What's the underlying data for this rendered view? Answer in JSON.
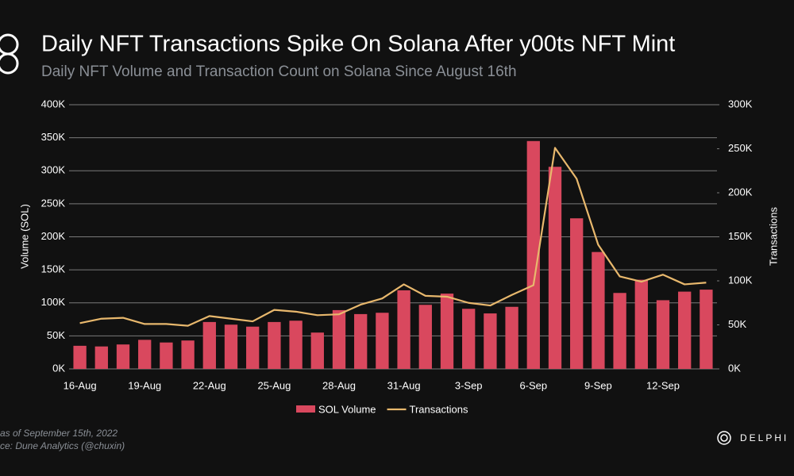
{
  "chart_data": {
    "type": "bar_line",
    "title": "Daily NFT Transactions Spike On Solana After y00ts NFT Mint",
    "subtitle": "Daily NFT Volume and Transaction Count on Solana Since August 16th",
    "y_label": "Volume (SOL)",
    "y2_label": "Transactions",
    "categories": [
      "16-Aug",
      null,
      null,
      "19-Aug",
      null,
      null,
      "22-Aug",
      null,
      null,
      "25-Aug",
      null,
      null,
      "28-Aug",
      null,
      null,
      "31-Aug",
      null,
      null,
      "3-Sep",
      null,
      null,
      "6-Sep",
      null,
      null,
      "9-Sep",
      null,
      null,
      "12-Sep",
      null,
      null
    ],
    "series": [
      {
        "name": "SOL Volume",
        "type": "bar",
        "color": "#d9485e",
        "values": [
          35000,
          34000,
          37000,
          44000,
          40000,
          43000,
          71000,
          67000,
          64000,
          71000,
          73000,
          55000,
          89000,
          83000,
          85000,
          119000,
          97000,
          114000,
          91000,
          84000,
          94000,
          345000,
          306000,
          228000,
          177000,
          115000,
          135000,
          104000,
          117000,
          120000
        ]
      },
      {
        "name": "Transactions",
        "type": "line",
        "axis": "y2",
        "color": "#e8b86d",
        "values": [
          52000,
          57000,
          58000,
          51000,
          51000,
          49000,
          60000,
          57000,
          54000,
          67000,
          65000,
          61000,
          62000,
          73000,
          80000,
          96000,
          83000,
          82000,
          75000,
          72000,
          84000,
          95000,
          251000,
          216000,
          141000,
          105000,
          99000,
          107000,
          96000,
          98000
        ]
      }
    ],
    "ylim": [
      0,
      400000
    ],
    "yticks": [
      {
        "value": 0,
        "label": "0K"
      },
      {
        "value": 50000,
        "label": "50K"
      },
      {
        "value": 100000,
        "label": "100K"
      },
      {
        "value": 150000,
        "label": "150K"
      },
      {
        "value": 200000,
        "label": "200K"
      },
      {
        "value": 250000,
        "label": "250K"
      },
      {
        "value": 300000,
        "label": "300K"
      },
      {
        "value": 350000,
        "label": "350K"
      },
      {
        "value": 400000,
        "label": "400K"
      }
    ],
    "y2lim": [
      0,
      300000
    ],
    "y2ticks": [
      {
        "value": 0,
        "label": "0K"
      },
      {
        "value": 50000,
        "label": "50K"
      },
      {
        "value": 100000,
        "label": "100K"
      },
      {
        "value": 150000,
        "label": "150K"
      },
      {
        "value": 200000,
        "label": "200K"
      },
      {
        "value": 250000,
        "label": "250K"
      },
      {
        "value": 300000,
        "label": "300K"
      }
    ],
    "grid": true,
    "legend": "bottom",
    "notes": [
      "as of September 15th, 2022",
      "ce: Dune Analytics (@chuxin)"
    ],
    "brand": "DELPHI D"
  }
}
